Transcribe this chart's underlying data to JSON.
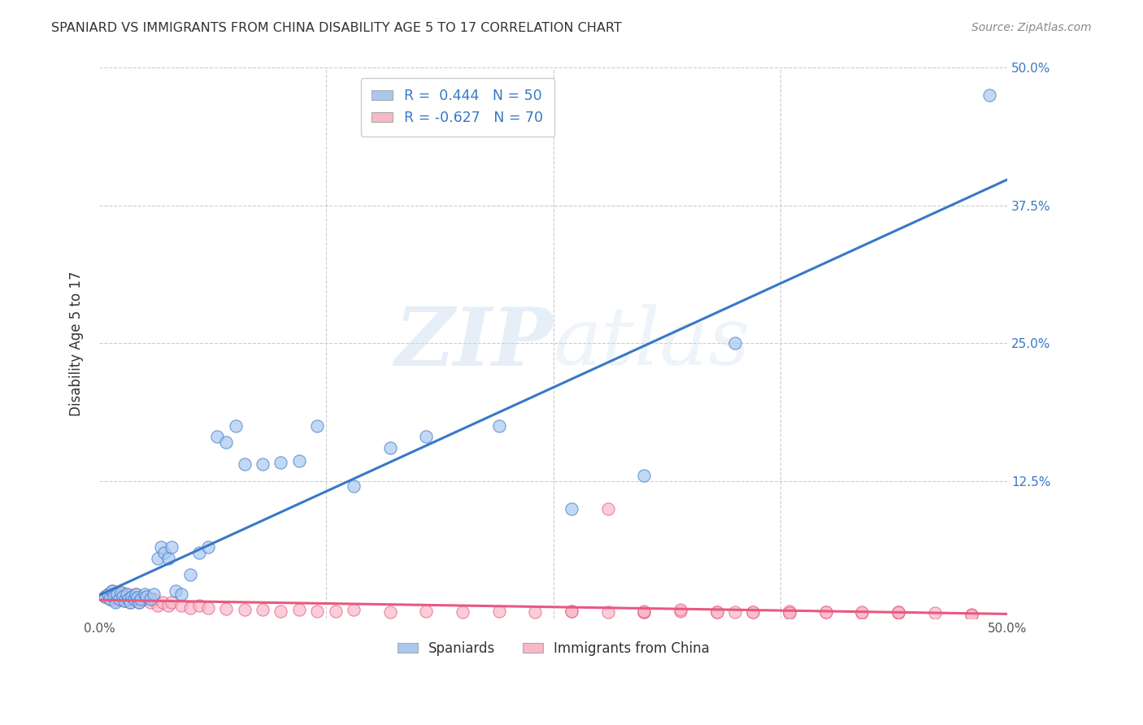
{
  "title": "SPANIARD VS IMMIGRANTS FROM CHINA DISABILITY AGE 5 TO 17 CORRELATION CHART",
  "source": "Source: ZipAtlas.com",
  "ylabel": "Disability Age 5 to 17",
  "xlim": [
    0.0,
    0.5
  ],
  "ylim": [
    0.0,
    0.5
  ],
  "spaniards_color": "#A8C8F0",
  "immigrants_color": "#F8B8C8",
  "spaniards_line_color": "#3878C8",
  "immigrants_line_color": "#E85880",
  "background_color": "#FFFFFF",
  "grid_color": "#CCCCCC",
  "spaniards_x": [
    0.003,
    0.005,
    0.006,
    0.007,
    0.008,
    0.009,
    0.01,
    0.011,
    0.012,
    0.013,
    0.014,
    0.015,
    0.016,
    0.017,
    0.018,
    0.019,
    0.02,
    0.021,
    0.022,
    0.023,
    0.025,
    0.026,
    0.028,
    0.03,
    0.032,
    0.034,
    0.036,
    0.038,
    0.04,
    0.042,
    0.045,
    0.05,
    0.055,
    0.06,
    0.065,
    0.07,
    0.075,
    0.08,
    0.09,
    0.1,
    0.11,
    0.12,
    0.14,
    0.16,
    0.18,
    0.22,
    0.26,
    0.3,
    0.35,
    0.49
  ],
  "spaniards_y": [
    0.02,
    0.022,
    0.018,
    0.025,
    0.02,
    0.015,
    0.022,
    0.018,
    0.024,
    0.02,
    0.016,
    0.022,
    0.018,
    0.015,
    0.02,
    0.018,
    0.022,
    0.019,
    0.015,
    0.018,
    0.022,
    0.02,
    0.018,
    0.022,
    0.055,
    0.065,
    0.06,
    0.055,
    0.065,
    0.025,
    0.022,
    0.04,
    0.06,
    0.065,
    0.165,
    0.16,
    0.175,
    0.14,
    0.14,
    0.142,
    0.143,
    0.175,
    0.12,
    0.155,
    0.165,
    0.175,
    0.1,
    0.13,
    0.25,
    0.475
  ],
  "immigrants_x": [
    0.003,
    0.005,
    0.006,
    0.007,
    0.008,
    0.009,
    0.01,
    0.011,
    0.012,
    0.013,
    0.014,
    0.015,
    0.016,
    0.017,
    0.018,
    0.019,
    0.02,
    0.022,
    0.024,
    0.026,
    0.028,
    0.03,
    0.032,
    0.035,
    0.038,
    0.04,
    0.045,
    0.05,
    0.055,
    0.06,
    0.07,
    0.08,
    0.09,
    0.1,
    0.11,
    0.12,
    0.13,
    0.14,
    0.16,
    0.18,
    0.2,
    0.22,
    0.24,
    0.26,
    0.28,
    0.3,
    0.32,
    0.34,
    0.36,
    0.38,
    0.4,
    0.42,
    0.44,
    0.46,
    0.48,
    0.28,
    0.3,
    0.32,
    0.35,
    0.38,
    0.4,
    0.42,
    0.44,
    0.26,
    0.3,
    0.34,
    0.36,
    0.38,
    0.44,
    0.48
  ],
  "immigrants_y": [
    0.02,
    0.022,
    0.018,
    0.025,
    0.02,
    0.016,
    0.022,
    0.018,
    0.024,
    0.02,
    0.016,
    0.022,
    0.018,
    0.015,
    0.02,
    0.018,
    0.022,
    0.015,
    0.018,
    0.02,
    0.015,
    0.018,
    0.012,
    0.015,
    0.012,
    0.015,
    0.012,
    0.01,
    0.012,
    0.01,
    0.009,
    0.008,
    0.008,
    0.007,
    0.008,
    0.007,
    0.007,
    0.008,
    0.006,
    0.007,
    0.006,
    0.007,
    0.006,
    0.007,
    0.006,
    0.006,
    0.007,
    0.006,
    0.006,
    0.005,
    0.006,
    0.005,
    0.006,
    0.005,
    0.004,
    0.1,
    0.006,
    0.008,
    0.006,
    0.007,
    0.006,
    0.006,
    0.005,
    0.007,
    0.007,
    0.006,
    0.006,
    0.005,
    0.006,
    0.003
  ]
}
